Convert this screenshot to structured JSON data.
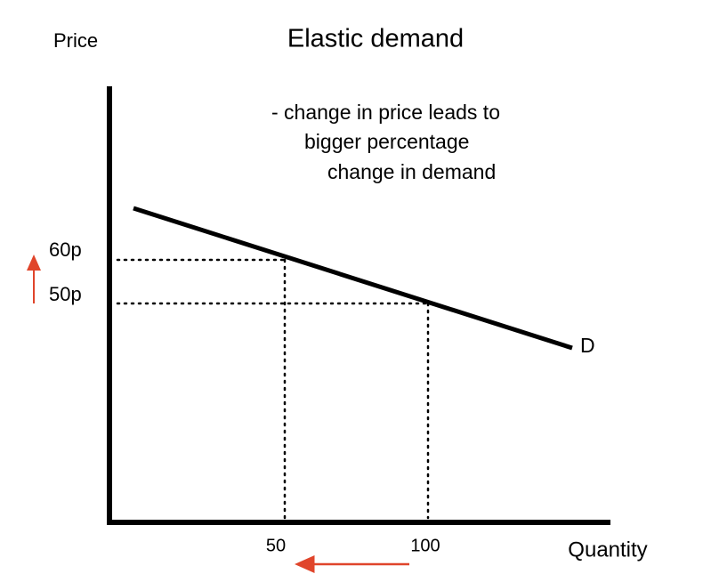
{
  "title": "Elastic demand",
  "axes": {
    "y_label": "Price",
    "x_label": "Quantity"
  },
  "annotation": [
    "- change in price leads to",
    "bigger percentage",
    "change in demand"
  ],
  "curve_label": "D",
  "price_labels": [
    "60p",
    "50p"
  ],
  "quantity_labels": [
    "50",
    "100"
  ]
}
